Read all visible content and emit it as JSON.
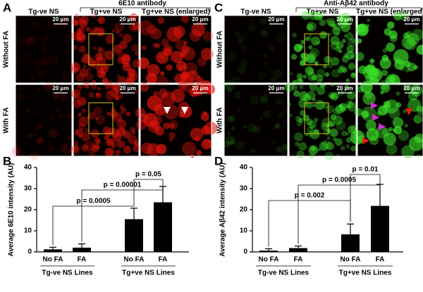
{
  "image_panels": [
    {
      "label": "A",
      "title": "6E10 antibody",
      "columns": [
        "Tg-ve NS",
        "Tg+ve NS",
        "Tg+ve NS (enlarged)"
      ],
      "rows": [
        "Without FA",
        "With FA"
      ],
      "scale_labels": [
        "20 μm",
        "20 μm",
        "20 μm",
        "20 μm",
        "20 μm",
        "20 μm"
      ]
    },
    {
      "label": "C",
      "title": "Anti-Aβ42 antibody",
      "columns": [
        "Tg-ve NS",
        "Tg+ve NS",
        "Tg+ve NS (enlarged)"
      ],
      "rows": [
        "Without FA",
        "With FA"
      ],
      "scale_labels": [
        "20 μm",
        "20 μm",
        "20 μm",
        "20 μm",
        "20 μm",
        "20 μm"
      ]
    }
  ],
  "chart_data": [
    {
      "type": "bar",
      "panel_label": "B",
      "ylabel": "Average 6E10 intensity (AU)",
      "categories": [
        "No FA",
        "FA",
        "No FA",
        "FA"
      ],
      "groups": [
        "Tg-ve NS Lines",
        "Tg+ve NS Lines"
      ],
      "values": [
        1.2,
        2.0,
        15.5,
        23.5
      ],
      "errors": [
        1.0,
        1.8,
        5.2,
        7.5
      ],
      "color": "#000000",
      "ylim": [
        0,
        40
      ],
      "yticks": [
        0,
        10,
        20,
        30,
        40
      ],
      "annotations": [
        "p = 0.0005",
        "p = 0.00001",
        "p = 0.05"
      ]
    },
    {
      "type": "bar",
      "panel_label": "D",
      "ylabel": "Average Aβ42 intensity (AU)",
      "categories": [
        "No FA",
        "FA",
        "No FA",
        "FA"
      ],
      "groups": [
        "Tg-ve NS Lines",
        "Tg+ve NS Lines"
      ],
      "values": [
        0.6,
        1.8,
        8.3,
        21.8
      ],
      "errors": [
        0.9,
        1.0,
        4.9,
        10.2
      ],
      "color": "#000000",
      "ylim": [
        0,
        40
      ],
      "yticks": [
        0,
        10,
        20,
        30,
        40
      ],
      "annotations": [
        "p = 0.002",
        "p = 0.0005",
        "p = 0.01"
      ]
    }
  ]
}
